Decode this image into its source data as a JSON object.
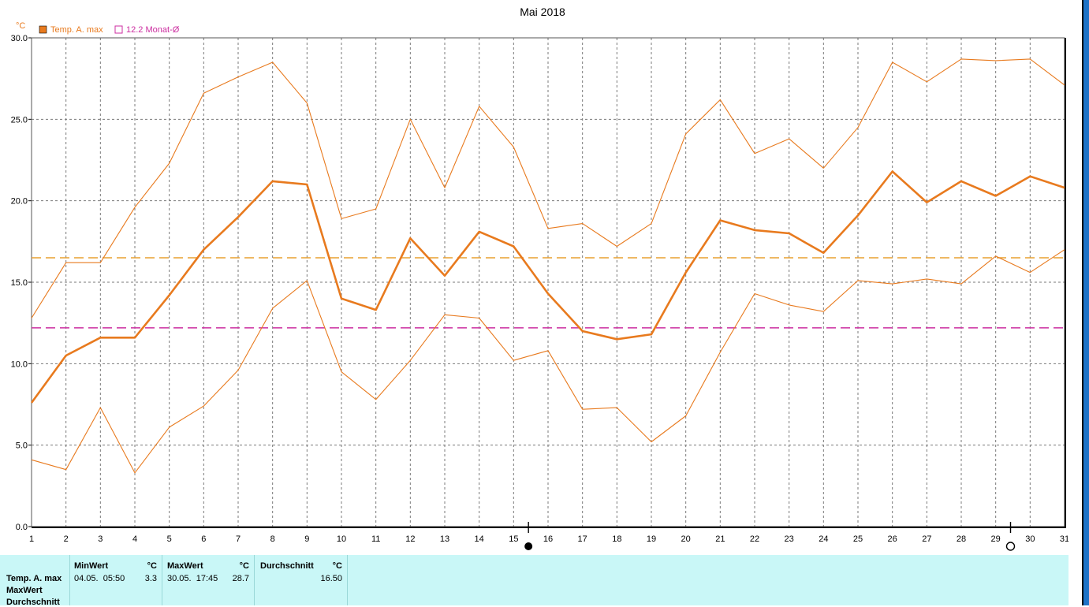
{
  "chart_data": {
    "type": "line",
    "title": "Mai 2018",
    "unit_label": "°C",
    "x": [
      1,
      2,
      3,
      4,
      5,
      6,
      7,
      8,
      9,
      10,
      11,
      12,
      13,
      14,
      15,
      16,
      17,
      18,
      19,
      20,
      21,
      22,
      23,
      24,
      25,
      26,
      27,
      28,
      29,
      30,
      31
    ],
    "xlim": [
      1,
      31
    ],
    "ylim": [
      0,
      30
    ],
    "yticks": [
      "0.0",
      "5.0",
      "10.0",
      "15.0",
      "20.0",
      "25.0",
      "30.0"
    ],
    "grid": true,
    "legend_position": "top-left",
    "legend": [
      {
        "label": "Temp. A. max",
        "color": "#e87a1e",
        "marker": "filled-square"
      },
      {
        "label": "12.2 Monat-Ø",
        "color": "#cc2ea0",
        "marker": "hollow-square"
      }
    ],
    "series": [
      {
        "name": "Temp. A. max",
        "role": "main",
        "color": "#e87a1e",
        "values": [
          7.6,
          10.5,
          11.6,
          11.6,
          14.2,
          17.0,
          19.0,
          21.2,
          21.0,
          14.0,
          13.3,
          17.7,
          15.4,
          18.1,
          17.2,
          14.3,
          12.0,
          11.5,
          11.8,
          15.6,
          18.8,
          18.2,
          18.0,
          16.8,
          19.1,
          21.8,
          19.9,
          21.2,
          20.3,
          21.5,
          20.8
        ]
      },
      {
        "name": "",
        "role": "upper",
        "color": "#e87a1e",
        "values": [
          12.8,
          16.2,
          16.2,
          19.6,
          22.3,
          26.6,
          27.6,
          28.5,
          26.0,
          18.9,
          19.5,
          25.0,
          20.8,
          25.8,
          23.3,
          18.3,
          18.6,
          17.2,
          18.6,
          24.1,
          26.2,
          22.9,
          23.8,
          22.0,
          24.5,
          28.5,
          27.3,
          28.7,
          28.6,
          28.7,
          27.1
        ]
      },
      {
        "name": "",
        "role": "lower",
        "color": "#e87a1e",
        "values": [
          4.1,
          3.5,
          7.3,
          3.3,
          6.1,
          7.4,
          9.6,
          13.4,
          15.1,
          9.5,
          7.8,
          10.2,
          13.0,
          12.8,
          10.2,
          10.8,
          7.2,
          7.3,
          5.2,
          6.8,
          10.7,
          14.3,
          13.6,
          13.2,
          15.1,
          14.9,
          15.2,
          14.9,
          16.6,
          15.6,
          17.0
        ]
      }
    ],
    "reference_lines": [
      {
        "label": "average",
        "value": 16.5,
        "color": "#e8a030",
        "style": "dashed"
      },
      {
        "label": "12.2 Monat-Ø",
        "value": 12.2,
        "color": "#cc2ea0",
        "style": "dashed"
      }
    ],
    "moon_markers": [
      {
        "after_day": 15,
        "phase": "new-moon",
        "symbol": "●"
      },
      {
        "after_day": 29,
        "phase": "full-moon",
        "symbol": "○"
      }
    ]
  },
  "stats_table": {
    "row_labels": [
      "Temp. A. max",
      "MaxWert",
      "Durchschnitt"
    ],
    "columns": [
      {
        "header": "MinWert",
        "unit": "°C",
        "date": "04.05.",
        "time": "05:50",
        "value": "3.3"
      },
      {
        "header": "MaxWert",
        "unit": "°C",
        "date": "30.05.",
        "time": "17:45",
        "value": "28.7"
      },
      {
        "header": "Durchschnitt",
        "unit": "°C",
        "value": "16.50"
      }
    ]
  },
  "colors": {
    "main_line": "#e87a1e",
    "monthly_avg": "#cc2ea0",
    "average_line": "#e8a030",
    "stats_background": "#c9f7f7"
  }
}
